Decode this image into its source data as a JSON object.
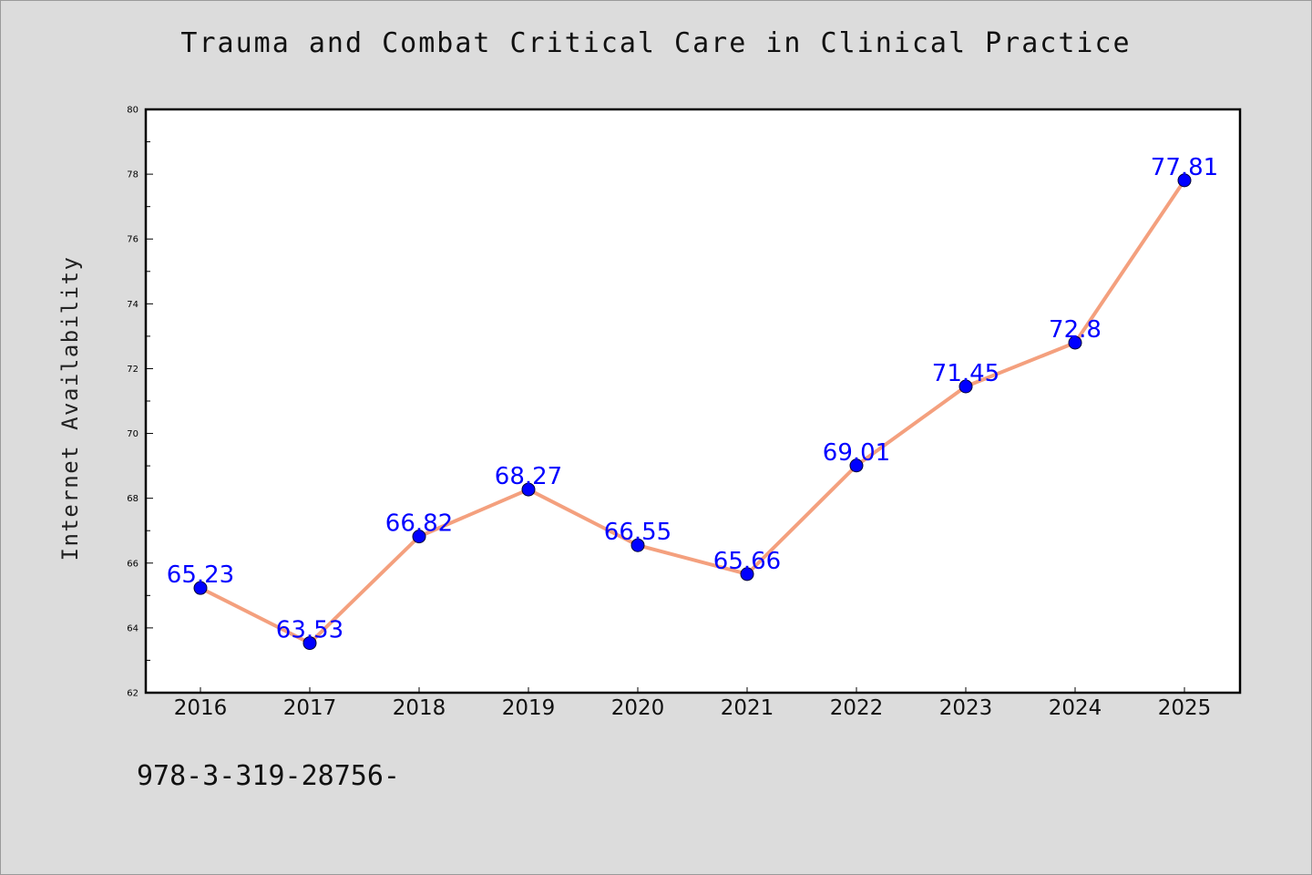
{
  "chart_data": {
    "type": "line",
    "title": "Trauma and Combat Critical Care in Clinical Practice",
    "xlabel": "",
    "ylabel": "Internet Availability",
    "x": [
      "2016",
      "2017",
      "2018",
      "2019",
      "2020",
      "2021",
      "2022",
      "2023",
      "2024",
      "2025"
    ],
    "values": [
      65.23,
      63.53,
      66.82,
      68.27,
      66.55,
      65.66,
      69.01,
      71.45,
      72.8,
      77.81
    ],
    "data_labels": [
      "65.23",
      "63.53",
      "66.82",
      "68.27",
      "66.55",
      "65.66",
      "69.01",
      "71.45",
      "72.8",
      "77.81"
    ],
    "ylim": [
      62,
      80
    ],
    "y_ticks": [
      "62",
      "64",
      "66",
      "68",
      "70",
      "72",
      "74",
      "76",
      "78",
      "80"
    ],
    "grid": false,
    "legend": "none",
    "colors": {
      "line": "#f4a07e",
      "marker": "#0000ff",
      "label": "#0000ff",
      "background": "#dcdcdc",
      "plot_background": "#ffffff"
    }
  },
  "footer": {
    "text": "978-3-319-28756-"
  }
}
